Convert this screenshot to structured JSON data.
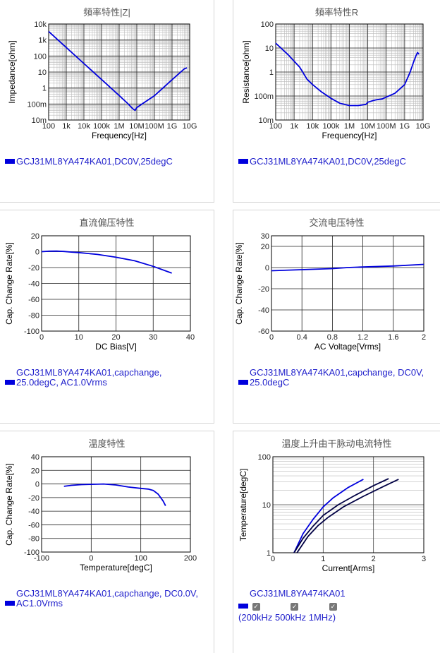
{
  "chart_data": [
    {
      "id": "impedance",
      "type": "line",
      "title": "頻率特性|Z|",
      "xlabel": "Frequency[Hz]",
      "ylabel": "Impedance[ohm]",
      "xscale": "log",
      "yscale": "log",
      "xlim": [
        100,
        10000000000
      ],
      "ylim": [
        0.01,
        10000
      ],
      "xticks": [
        "100",
        "1k",
        "10k",
        "100k",
        "1M",
        "10M",
        "100M",
        "1G",
        "10G"
      ],
      "yticks": [
        "10m",
        "100m",
        "1",
        "10",
        "100",
        "1k",
        "10k"
      ],
      "grid": true,
      "series": [
        {
          "name": "GCJ31ML8YA474KA01,DC0V,25degC",
          "color": "#0000dd",
          "x": [
            100,
            1000,
            10000,
            100000,
            1000000,
            3000000,
            6000000,
            8000000,
            10000000,
            20000000,
            100000000,
            1000000000,
            5000000000,
            7000000000
          ],
          "y": [
            3400,
            340,
            34,
            3.4,
            0.34,
            0.11,
            0.05,
            0.04,
            0.06,
            0.1,
            0.33,
            3.3,
            16,
            18
          ]
        }
      ],
      "legend": [
        "GCJ31ML8YA474KA01,DC0V,25degC"
      ]
    },
    {
      "id": "resistance",
      "type": "line",
      "title": "頻率特性R",
      "xlabel": "Frequency[Hz]",
      "ylabel": "Resistance[ohm]",
      "xscale": "log",
      "yscale": "log",
      "xlim": [
        100,
        10000000000
      ],
      "ylim": [
        0.01,
        100
      ],
      "xticks": [
        "100",
        "1k",
        "10k",
        "100k",
        "1M",
        "10M",
        "100M",
        "1G",
        "10G"
      ],
      "yticks": [
        "10m",
        "100m",
        "1",
        "10",
        "100"
      ],
      "grid": true,
      "series": [
        {
          "name": "GCJ31ML8YA474KA01,DC0V,25degC",
          "color": "#0000dd",
          "x": [
            100,
            500,
            2000,
            5000,
            10000,
            30000,
            100000,
            300000,
            1000000,
            3000000,
            8000000,
            10000000,
            20000000,
            30000000,
            60000000,
            100000000,
            300000000,
            1000000000,
            2000000000,
            3000000000,
            4000000000,
            5000000000,
            6000000000
          ],
          "y": [
            16,
            5,
            1.6,
            0.5,
            0.3,
            0.15,
            0.08,
            0.05,
            0.04,
            0.04,
            0.045,
            0.055,
            0.065,
            0.07,
            0.075,
            0.09,
            0.13,
            0.3,
            1.0,
            2.5,
            4.5,
            6.5,
            5.5
          ]
        }
      ],
      "legend": [
        "GCJ31ML8YA474KA01,DC0V,25degC"
      ]
    },
    {
      "id": "dcbias",
      "type": "line",
      "title": "直流偏压特性",
      "xlabel": "DC Bias[V]",
      "ylabel": "Cap. Change Rate[%]",
      "xlim": [
        0,
        40
      ],
      "ylim": [
        -100,
        20
      ],
      "xticks": [
        "0",
        "10",
        "20",
        "30",
        "40"
      ],
      "yticks": [
        "20",
        "0",
        "-20",
        "-40",
        "-60",
        "-80",
        "-100"
      ],
      "grid": true,
      "series": [
        {
          "name": "GCJ31ML8YA474KA01,capchange, 25.0degC, AC1.0Vrms",
          "color": "#0000dd",
          "x": [
            0,
            2,
            4,
            6,
            8,
            10,
            15,
            20,
            25,
            30,
            35
          ],
          "y": [
            0,
            0.6,
            0.7,
            0.3,
            -0.5,
            -1.2,
            -3.5,
            -7,
            -11.5,
            -18.5,
            -27
          ]
        }
      ],
      "legend": [
        "GCJ31ML8YA474KA01,capchange,",
        "25.0degC, AC1.0Vrms"
      ]
    },
    {
      "id": "acvoltage",
      "type": "line",
      "title": "交流电压特性",
      "xlabel": "AC Voltage[Vrms]",
      "ylabel": "Cap. Change Rate[%]",
      "xlim": [
        0,
        2
      ],
      "ylim": [
        -60,
        30
      ],
      "xticks": [
        "0",
        "0.4",
        "0.8",
        "1.2",
        "1.6",
        "2"
      ],
      "yticks": [
        "30",
        "20",
        "0",
        "-20",
        "-40",
        "-60"
      ],
      "grid": true,
      "series": [
        {
          "name": "GCJ31ML8YA474KA01,capchange, DC0V, 25.0degC",
          "color": "#0000dd",
          "x": [
            0,
            0.4,
            0.8,
            1.0,
            1.2,
            1.6,
            2.0
          ],
          "y": [
            -3,
            -2,
            -1,
            0,
            0.5,
            1.5,
            3
          ]
        }
      ],
      "legend": [
        "GCJ31ML8YA474KA01,capchange, DC0V,",
        "25.0degC"
      ]
    },
    {
      "id": "temperature",
      "type": "line",
      "title": "温度特性",
      "xlabel": "Temperature[degC]",
      "ylabel": "Cap. Change Rate[%]",
      "xlim": [
        -100,
        200
      ],
      "ylim": [
        -100,
        40
      ],
      "xticks": [
        "-100",
        "0",
        "100",
        "200"
      ],
      "yticks": [
        "40",
        "20",
        "0",
        "-20",
        "-40",
        "-60",
        "-80",
        "-100"
      ],
      "grid": true,
      "series": [
        {
          "name": "GCJ31ML8YA474KA01,capchange, DC0.0V, AC1.0Vrms",
          "color": "#0000dd",
          "x": [
            -55,
            -40,
            -20,
            0,
            25,
            50,
            75,
            100,
            115,
            125,
            135,
            145,
            150
          ],
          "y": [
            -3.5,
            -2,
            -1,
            -0.5,
            0,
            -1.5,
            -4.5,
            -6.5,
            -7.5,
            -9.5,
            -15,
            -25,
            -32
          ]
        }
      ],
      "legend": [
        "GCJ31ML8YA474KA01,capchange, DC0.0V,",
        "AC1.0Vrms"
      ]
    },
    {
      "id": "ripple",
      "type": "line",
      "title": "温度上升由干脉动电流特性",
      "xlabel": "Current[Arms]",
      "ylabel": "Temperature[degC]",
      "xlim": [
        0,
        3
      ],
      "ylim": [
        1,
        100
      ],
      "yscale": "log",
      "xticks": [
        "0",
        "1",
        "2",
        "3"
      ],
      "yticks": [
        "1",
        "10",
        "100"
      ],
      "grid": true,
      "series": [
        {
          "name": "200kHz",
          "color": "#0000dd",
          "x": [
            0.42,
            0.6,
            0.8,
            1.0,
            1.2,
            1.5,
            1.8
          ],
          "y": [
            1,
            2.5,
            5,
            9,
            14,
            23,
            34
          ]
        },
        {
          "name": "500kHz",
          "color": "#000044",
          "x": [
            0.42,
            0.6,
            0.8,
            1.0,
            1.3,
            1.6,
            2.0,
            2.3
          ],
          "y": [
            1,
            2.0,
            3.6,
            6,
            10,
            15,
            25,
            35
          ]
        },
        {
          "name": "1MHz",
          "color": "#000044",
          "x": [
            0.48,
            0.7,
            0.9,
            1.1,
            1.4,
            1.8,
            2.2,
            2.5
          ],
          "y": [
            1,
            2.2,
            3.7,
            5.5,
            9,
            15,
            24,
            34
          ]
        }
      ],
      "legend": [
        "GCJ31ML8YA474KA01"
      ]
    }
  ],
  "legend_checks": [
    {
      "label": "200kHz",
      "checked": "✓"
    },
    {
      "label": "500kHz",
      "checked": "✓"
    },
    {
      "label": "1MHz",
      "checked": "✓"
    }
  ]
}
